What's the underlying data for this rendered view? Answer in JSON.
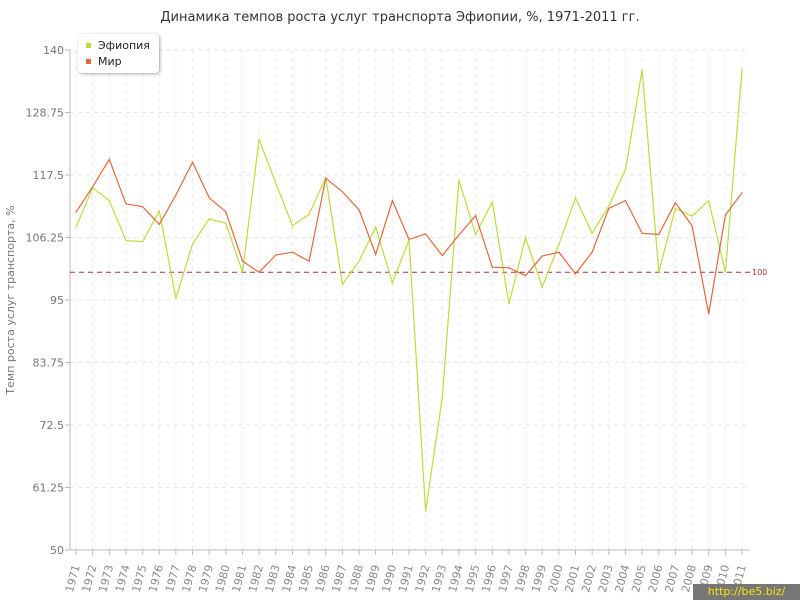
{
  "chart_data": {
    "type": "line",
    "title": "Динамика темпов роста услуг транспорта Эфиопии, %, 1971-2011 гг.",
    "ylabel": "Темп роста услуг транспорта, %",
    "xlabel": "",
    "ylim": [
      50,
      140
    ],
    "yticks": [
      "50",
      "61.25",
      "72.5",
      "83.75",
      "95",
      "106.25",
      "117.5",
      "128.75",
      "140"
    ],
    "categories": [
      "1971",
      "1972",
      "1973",
      "1974",
      "1975",
      "1976",
      "1977",
      "1978",
      "1979",
      "1980",
      "1981",
      "1982",
      "1983",
      "1984",
      "1985",
      "1986",
      "1987",
      "1988",
      "1989",
      "1990",
      "1991",
      "1992",
      "1993",
      "1994",
      "1995",
      "1996",
      "1997",
      "1998",
      "1999",
      "2000",
      "2001",
      "2002",
      "2003",
      "2004",
      "2005",
      "2006",
      "2007",
      "2008",
      "2009",
      "2010",
      "2011"
    ],
    "series": [
      {
        "name": "Эфиопия",
        "color": "#bddc3c",
        "values": [
          108.1,
          115.2,
          112.9,
          105.7,
          105.5,
          111.0,
          95.3,
          105.1,
          109.6,
          108.8,
          100.0,
          123.9,
          116.0,
          108.4,
          110.4,
          117.0,
          97.8,
          102.0,
          108.1,
          98.1,
          105.8,
          57.0,
          77.5,
          116.6,
          106.8,
          112.6,
          94.3,
          106.2,
          97.3,
          105.0,
          113.4,
          107.0,
          111.9,
          118.5,
          136.4,
          100.0,
          111.5,
          110.1,
          112.9,
          100.0,
          136.5
        ]
      },
      {
        "name": "Мир",
        "color": "#e0693b",
        "values": [
          110.8,
          115.4,
          120.3,
          112.3,
          111.8,
          108.6,
          113.9,
          119.8,
          113.4,
          110.9,
          102.0,
          100.0,
          103.1,
          103.6,
          102.0,
          116.9,
          114.5,
          111.2,
          103.2,
          112.9,
          105.9,
          106.9,
          103.0,
          106.7,
          110.2,
          100.9,
          100.8,
          99.4,
          102.9,
          103.6,
          99.7,
          103.6,
          111.5,
          112.9,
          107.0,
          106.8,
          112.5,
          108.4,
          92.5,
          110.3,
          114.3
        ]
      }
    ],
    "reference_line": {
      "value": 100,
      "label": "100",
      "color": "#a8323c"
    },
    "grid": true,
    "legend_position": "top-left"
  },
  "watermark": "http://be5.biz/"
}
